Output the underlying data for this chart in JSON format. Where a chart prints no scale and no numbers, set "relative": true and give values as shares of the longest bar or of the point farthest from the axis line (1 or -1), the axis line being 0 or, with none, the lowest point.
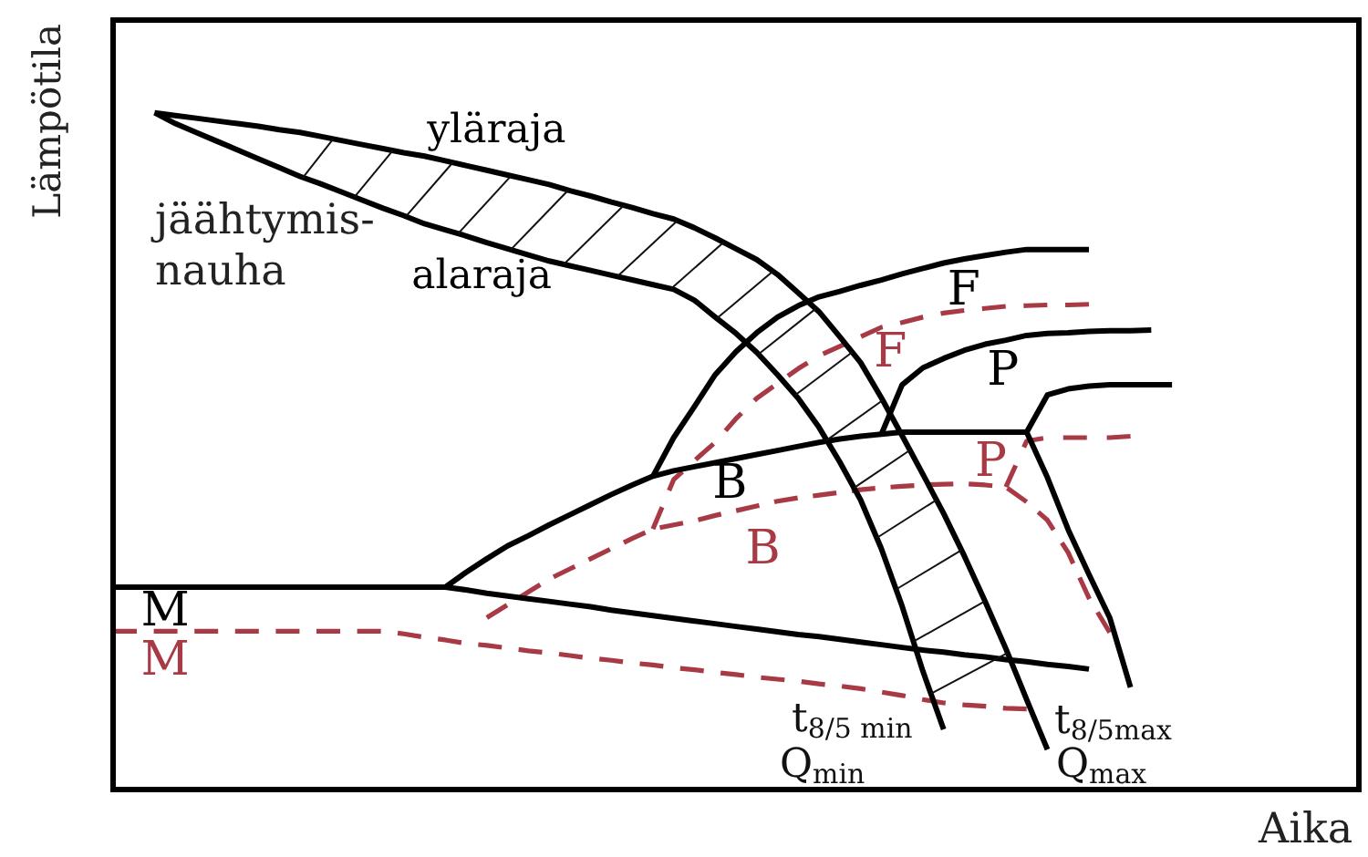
{
  "chart_data": {
    "type": "line",
    "relative": true,
    "xlabel": "Aika",
    "ylabel": "Lämpötila",
    "tick_labels": false,
    "marker": "none",
    "line_style": "solid",
    "categories": [
      null,
      null,
      null,
      null,
      null,
      null,
      null,
      null,
      null,
      null,
      null,
      null,
      null,
      null,
      null,
      null,
      null,
      null,
      null,
      null,
      null,
      null,
      null,
      null,
      null,
      null,
      null,
      null,
      null,
      null,
      null,
      null,
      null,
      null,
      null,
      null,
      null,
      null,
      null,
      null,
      null,
      null,
      null,
      null,
      null,
      null,
      null,
      null,
      null,
      null,
      null,
      null,
      null,
      null,
      null,
      null,
      null,
      null,
      null,
      null,
      null
    ],
    "annotations": [
      "jäähtymis-nauha",
      "t$_{8/5 min}$",
      "Q$_{min}$",
      "t$_{8/5max}$",
      "Q$_{max}$"
    ],
    "series": [
      {
        "name": "yläraja",
        "color": "#000000",
        "values": [
          null,
          null,
          1,
          0.996,
          0.992,
          0.988,
          0.984,
          0.98,
          0.975,
          0.971,
          0.965,
          0.959,
          0.953,
          0.947,
          0.941,
          0.936,
          0.929,
          0.922,
          0.915,
          0.908,
          0.901,
          0.894,
          0.885,
          0.877,
          0.868,
          0.86,
          0.851,
          0.843,
          0.83,
          0.815,
          0.799,
          0.783,
          0.761,
          0.734,
          0.706,
          0.669,
          0.631,
          0.579,
          0.523,
          0.466,
          0.408,
          0.345,
          0.278,
          0.208,
          0.133,
          0.059,
          null,
          null,
          null,
          null,
          null,
          null,
          null,
          null,
          null,
          null,
          null,
          null,
          null,
          null,
          null
        ]
      },
      {
        "name": "alaraja",
        "color": "#000000",
        "values": [
          null,
          null,
          1,
          0.984,
          0.971,
          0.958,
          0.945,
          0.932,
          0.919,
          0.906,
          0.895,
          0.883,
          0.871,
          0.859,
          0.848,
          0.836,
          0.827,
          0.818,
          0.808,
          0.799,
          0.79,
          0.781,
          0.774,
          0.767,
          0.76,
          0.753,
          0.746,
          0.739,
          0.723,
          0.698,
          0.674,
          0.646,
          0.613,
          0.578,
          0.535,
          0.484,
          0.428,
          0.356,
          0.271,
          0.175,
          0.089,
          null,
          null,
          null,
          null,
          null,
          null,
          null,
          null,
          null,
          null,
          null,
          null,
          null,
          null,
          null,
          null,
          null,
          null,
          null,
          null
        ]
      },
      {
        "name": "F",
        "color": "#000000",
        "values": [
          null,
          null,
          null,
          null,
          null,
          null,
          null,
          null,
          null,
          null,
          null,
          null,
          null,
          null,
          null,
          null,
          null,
          null,
          null,
          null,
          null,
          null,
          null,
          null,
          null,
          null,
          0.463,
          0.52,
          0.566,
          0.613,
          0.647,
          0.675,
          0.698,
          0.715,
          0.728,
          0.736,
          0.745,
          0.753,
          0.762,
          0.77,
          0.778,
          0.784,
          0.789,
          0.794,
          0.798,
          0.798,
          0.798,
          0.798,
          null,
          null,
          null,
          null,
          null,
          null,
          null,
          null,
          null,
          null,
          null,
          null,
          null
        ]
      },
      {
        "name": "P",
        "color": "#000000",
        "values": [
          null,
          null,
          null,
          null,
          null,
          null,
          null,
          null,
          null,
          null,
          null,
          null,
          null,
          null,
          null,
          null,
          null,
          null,
          null,
          null,
          null,
          null,
          null,
          null,
          null,
          null,
          null,
          null,
          null,
          null,
          null,
          null,
          null,
          null,
          null,
          null,
          null,
          0.525,
          0.598,
          0.623,
          0.637,
          0.649,
          0.658,
          0.664,
          0.671,
          0.674,
          0.675,
          0.677,
          0.678,
          0.678,
          0.679,
          null,
          null,
          null,
          null,
          null,
          null,
          null,
          null,
          null,
          null
        ]
      },
      {
        "color": "#000000",
        "values": [
          null,
          null,
          null,
          null,
          null,
          null,
          null,
          null,
          null,
          null,
          null,
          null,
          null,
          null,
          null,
          null,
          null,
          null,
          null,
          null,
          null,
          null,
          null,
          null,
          null,
          null,
          null,
          null,
          null,
          null,
          null,
          null,
          null,
          null,
          null,
          null,
          null,
          null,
          null,
          null,
          null,
          null,
          null,
          null,
          0.528,
          0.583,
          0.592,
          0.596,
          0.598,
          0.598,
          0.598,
          0.598,
          null,
          null,
          null,
          null,
          null,
          null,
          null,
          null,
          null
        ]
      },
      {
        "color": "#000000",
        "values": [
          null,
          null,
          null,
          null,
          null,
          null,
          null,
          null,
          null,
          null,
          null,
          null,
          null,
          null,
          null,
          null,
          null,
          null,
          null,
          null,
          null,
          null,
          null,
          null,
          null,
          null,
          null,
          null,
          null,
          null,
          null,
          null,
          null,
          null,
          null,
          null,
          null,
          null,
          null,
          null,
          null,
          null,
          null,
          null,
          0.528,
          0.461,
          0.384,
          0.318,
          0.254,
          0.151,
          null,
          null,
          null,
          null,
          null,
          null,
          null,
          null,
          null,
          null,
          null
        ]
      },
      {
        "name": "B",
        "color": "#000000",
        "values": [
          null,
          null,
          null,
          null,
          null,
          null,
          null,
          null,
          null,
          null,
          null,
          null,
          null,
          null,
          null,
          null,
          0.299,
          0.321,
          0.341,
          0.36,
          0.375,
          0.391,
          0.406,
          0.421,
          0.436,
          0.45,
          0.463,
          0.471,
          0.477,
          0.483,
          0.489,
          0.495,
          0.501,
          0.507,
          0.513,
          0.518,
          0.522,
          0.525,
          0.528,
          0.528,
          0.528,
          0.528,
          0.528,
          0.528,
          0.528,
          null,
          null,
          null,
          null,
          null,
          null,
          null,
          null,
          null,
          null,
          null,
          null,
          null,
          null,
          null,
          null
        ]
      },
      {
        "name": "M",
        "color": "#000000",
        "values": [
          0.299,
          0.299,
          0.299,
          0.299,
          0.299,
          0.299,
          0.299,
          0.299,
          0.299,
          0.299,
          0.299,
          0.299,
          0.299,
          0.299,
          0.299,
          0.299,
          0.299,
          0.295,
          0.29,
          0.286,
          0.282,
          0.278,
          0.274,
          0.27,
          0.265,
          0.261,
          0.257,
          0.253,
          0.249,
          0.245,
          0.241,
          0.237,
          0.233,
          0.229,
          0.226,
          0.222,
          0.218,
          0.214,
          0.21,
          0.206,
          0.203,
          0.199,
          0.196,
          0.192,
          0.189,
          0.185,
          0.182,
          0.178,
          null,
          null,
          null,
          null,
          null,
          null,
          null,
          null,
          null,
          null,
          null,
          null,
          null
        ]
      },
      {
        "name": "M",
        "color": "#a83a45",
        "line_style": "dashed",
        "values": [
          0.234,
          0.234,
          0.234,
          0.234,
          0.234,
          0.234,
          0.234,
          0.234,
          0.234,
          0.234,
          0.234,
          0.234,
          0.234,
          0.234,
          0.23,
          0.225,
          0.221,
          0.216,
          0.213,
          0.209,
          0.205,
          0.202,
          0.198,
          0.194,
          0.191,
          0.187,
          0.184,
          0.18,
          0.177,
          0.173,
          0.17,
          0.166,
          0.163,
          0.16,
          0.156,
          0.153,
          0.149,
          0.144,
          0.139,
          0.133,
          0.128,
          0.125,
          0.123,
          0.12,
          0.119,
          null,
          null,
          null,
          null,
          null,
          null,
          null,
          null,
          null,
          null,
          null,
          null,
          null,
          null,
          null,
          null
        ]
      },
      {
        "name": "B",
        "color": "#a83a45",
        "line_style": "dashed",
        "values": [
          null,
          null,
          null,
          null,
          null,
          null,
          null,
          null,
          null,
          null,
          null,
          null,
          null,
          null,
          null,
          null,
          null,
          null,
          0.254,
          0.273,
          0.292,
          0.311,
          0.326,
          0.341,
          0.356,
          0.371,
          0.385,
          0.391,
          0.397,
          0.405,
          0.412,
          0.419,
          0.426,
          0.431,
          0.435,
          0.439,
          0.443,
          0.446,
          0.448,
          0.45,
          0.451,
          0.452,
          0.45,
          0.447,
          0.425,
          0.398,
          0.35,
          0.283,
          0.232,
          null,
          null,
          null,
          null,
          null,
          null,
          null,
          null,
          null,
          null,
          null,
          null
        ]
      },
      {
        "name": "F",
        "color": "#a83a45",
        "line_style": "dashed",
        "values": [
          null,
          null,
          null,
          null,
          null,
          null,
          null,
          null,
          null,
          null,
          null,
          null,
          null,
          null,
          null,
          null,
          null,
          null,
          null,
          null,
          null,
          null,
          null,
          null,
          null,
          null,
          0.385,
          0.458,
          0.486,
          0.513,
          0.548,
          0.578,
          0.6,
          0.622,
          0.641,
          0.655,
          0.669,
          0.683,
          0.69,
          0.698,
          0.704,
          0.708,
          0.711,
          0.714,
          0.715,
          0.716,
          0.716,
          0.717,
          null,
          null,
          null,
          null,
          null,
          null,
          null,
          null,
          null,
          null,
          null,
          null,
          null
        ]
      },
      {
        "name": "P",
        "color": "#a83a45",
        "line_style": "dashed",
        "values": [
          null,
          null,
          null,
          null,
          null,
          null,
          null,
          null,
          null,
          null,
          null,
          null,
          null,
          null,
          null,
          null,
          null,
          null,
          null,
          null,
          null,
          null,
          null,
          null,
          null,
          null,
          null,
          null,
          null,
          null,
          null,
          null,
          null,
          null,
          null,
          null,
          null,
          null,
          null,
          null,
          null,
          null,
          null,
          0.447,
          0.515,
          0.52,
          0.52,
          0.52,
          0.52,
          0.522,
          null,
          null,
          null,
          null,
          null,
          null,
          null,
          null,
          null,
          null,
          null
        ]
      }
    ]
  }
}
